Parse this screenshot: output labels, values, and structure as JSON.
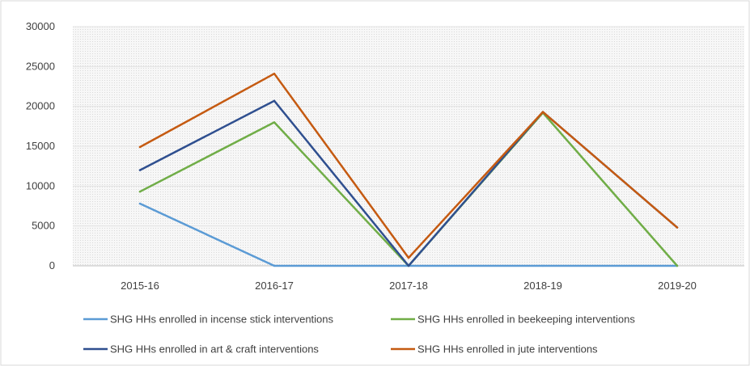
{
  "chart_data": {
    "type": "line",
    "title": "",
    "xlabel": "",
    "ylabel": "",
    "categories": [
      "2015-16",
      "2016-17",
      "2017-18",
      "2018-19",
      "2019-20"
    ],
    "ylim": [
      0,
      30000
    ],
    "yticks": [
      0,
      5000,
      10000,
      15000,
      20000,
      25000,
      30000
    ],
    "grid": true,
    "legend_position": "bottom",
    "series": [
      {
        "name": "SHG HHs enrolled in incense stick interventions",
        "color": "#5b9bd5",
        "values": [
          7800,
          0,
          0,
          0,
          0
        ]
      },
      {
        "name": "SHG HHs enrolled in beekeeping interventions",
        "color": "#70ad47",
        "values": [
          9300,
          18000,
          0,
          19200,
          0
        ]
      },
      {
        "name": "SHG HHs enrolled in art & craft interventions",
        "color": "#2f4f8f",
        "values": [
          12000,
          20700,
          0,
          19300,
          4800
        ]
      },
      {
        "name": "SHG HHs enrolled in jute interventions",
        "color": "#c55a11",
        "values": [
          14900,
          24100,
          1000,
          19300,
          4800
        ]
      }
    ]
  }
}
